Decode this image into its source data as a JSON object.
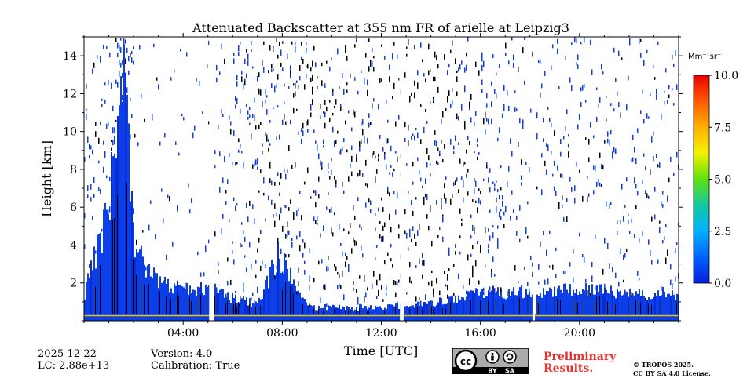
{
  "chart_data": {
    "type": "heatmap",
    "title": "Attenuated Backscatter at 355 nm FR of arielle at Leipzig3",
    "xlabel": "Time [UTC]",
    "ylabel": "Height [km]",
    "xlim_hours": [
      0,
      24
    ],
    "ylim_km": [
      0,
      15
    ],
    "x_ticks": [
      {
        "hour": 4,
        "label": "04:00"
      },
      {
        "hour": 8,
        "label": "08:00"
      },
      {
        "hour": 12,
        "label": "12:00"
      },
      {
        "hour": 16,
        "label": "16:00"
      },
      {
        "hour": 20,
        "label": "20:00"
      }
    ],
    "y_ticks": [
      {
        "value": 2,
        "label": "2"
      },
      {
        "value": 4,
        "label": "4"
      },
      {
        "value": 6,
        "label": "6"
      },
      {
        "value": 8,
        "label": "8"
      },
      {
        "value": 10,
        "label": "10"
      },
      {
        "value": 12,
        "label": "12"
      },
      {
        "value": 14,
        "label": "14"
      }
    ],
    "colorbar": {
      "unit_label": "Mm⁻¹sr⁻¹",
      "range": [
        0.0,
        10.0
      ],
      "ticks": [
        {
          "value": 0.0,
          "label": "0.0"
        },
        {
          "value": 2.5,
          "label": "2.5"
        },
        {
          "value": 5.0,
          "label": "5.0"
        },
        {
          "value": 7.5,
          "label": "7.5"
        },
        {
          "value": 10.0,
          "label": "10.0"
        }
      ],
      "colors": [
        "#0a1ed6",
        "#0062ff",
        "#00b0ff",
        "#16c8a0",
        "#5ee010",
        "#f2f200",
        "#ffb000",
        "#ff5a00",
        "#e80000"
      ]
    },
    "data_gaps_hours": [
      [
        5.05,
        5.25
      ],
      [
        12.75,
        12.9
      ],
      [
        18.1,
        18.2
      ]
    ],
    "profile": [
      {
        "hour": 0.0,
        "top_km": 1.5
      },
      {
        "hour": 1.0,
        "top_km": 6.0
      },
      {
        "hour": 1.5,
        "top_km": 14.0
      },
      {
        "hour": 2.0,
        "top_km": 4.0
      },
      {
        "hour": 3.0,
        "top_km": 2.0
      },
      {
        "hour": 4.0,
        "top_km": 1.6
      },
      {
        "hour": 5.0,
        "top_km": 1.7
      },
      {
        "hour": 6.0,
        "top_km": 1.2
      },
      {
        "hour": 7.0,
        "top_km": 0.9
      },
      {
        "hour": 7.8,
        "top_km": 3.5
      },
      {
        "hour": 9.0,
        "top_km": 0.7
      },
      {
        "hour": 11.0,
        "top_km": 0.7
      },
      {
        "hour": 13.0,
        "top_km": 0.8
      },
      {
        "hour": 15.0,
        "top_km": 1.1
      },
      {
        "hour": 16.0,
        "top_km": 1.5
      },
      {
        "hour": 20.0,
        "top_km": 1.6
      },
      {
        "hour": 22.0,
        "top_km": 1.5
      },
      {
        "hour": 24.0,
        "top_km": 1.4
      }
    ]
  },
  "footer": {
    "date": "2025-12-22",
    "lc": "LC: 2.88e+13",
    "version": "Version: 4.0",
    "calibration": "Calibration: True",
    "badge_by": "BY",
    "badge_sa": "SA",
    "preliminary_line1": "Preliminary",
    "preliminary_line2": "Results.",
    "copyright_line1": "© TROPOS 2025.",
    "copyright_line2": "CC BY SA 4.0 License."
  }
}
